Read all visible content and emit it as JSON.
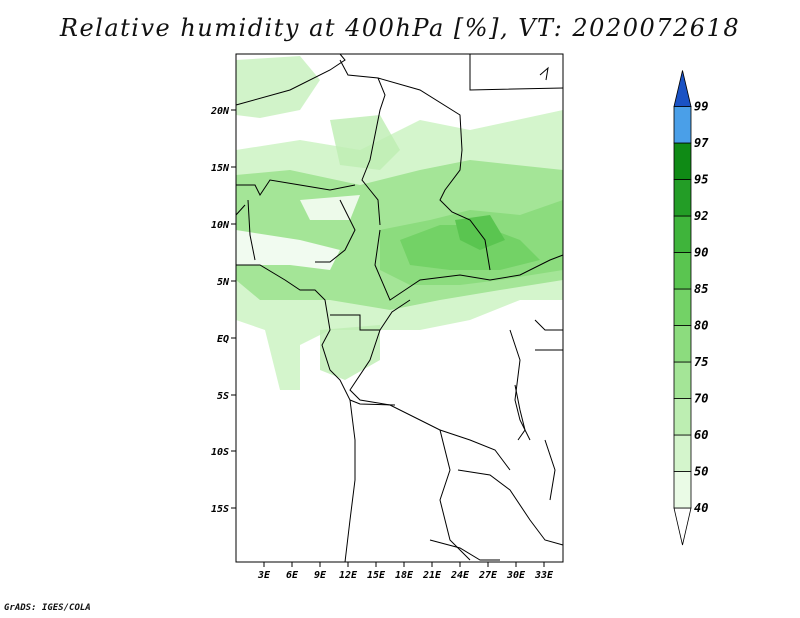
{
  "title": "Relative humidity at 400hPa [%], VT: 2020072618",
  "credit": "GrADS: IGES/COLA",
  "map": {
    "lat_labels": [
      "20N",
      "15N",
      "10N",
      "5N",
      "EQ",
      "5S",
      "10S",
      "15S"
    ],
    "lon_labels": [
      "3E",
      "6E",
      "9E",
      "12E",
      "15E",
      "18E",
      "21E",
      "24E",
      "27E",
      "30E",
      "33E"
    ]
  },
  "colorbar": {
    "levels": [
      "40",
      "50",
      "60",
      "70",
      "75",
      "80",
      "85",
      "90",
      "92",
      "95",
      "97",
      "99"
    ],
    "colors": [
      "#eafbe6",
      "#d4f5cc",
      "#bdeeb2",
      "#a4e597",
      "#8cdc7e",
      "#73d266",
      "#5ac550",
      "#3fb43b",
      "#239d26",
      "#0f8a15",
      "#4a9fe8",
      "#2b7ad8",
      "#1a52c4"
    ]
  }
}
